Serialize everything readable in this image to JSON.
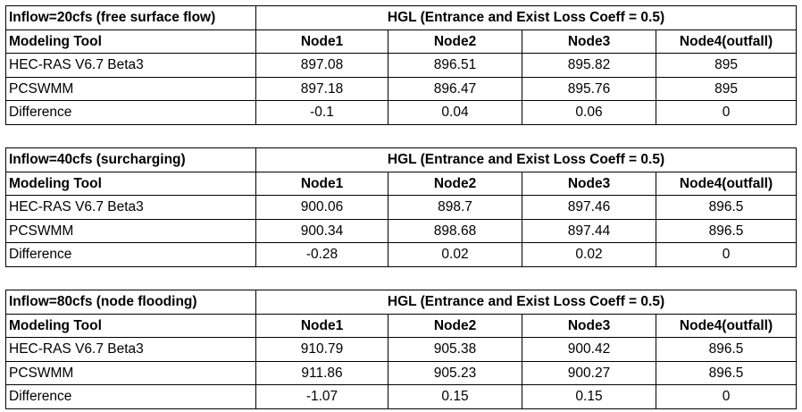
{
  "hgl_header": "HGL (Entrance and Exist Loss Coeff = 0.5)",
  "columns": [
    "Modeling Tool",
    "Node1",
    "Node2",
    "Node3",
    "Node4(outfall)"
  ],
  "tables": [
    {
      "title": "Inflow=20cfs (free surface flow)",
      "rows": [
        {
          "label": "HEC-RAS V6.7 Beta3",
          "values": [
            "897.08",
            "896.51",
            "895.82",
            "895"
          ]
        },
        {
          "label": "PCSWMM",
          "values": [
            "897.18",
            "896.47",
            "895.76",
            "895"
          ]
        },
        {
          "label": "Difference",
          "values": [
            "-0.1",
            "0.04",
            "0.06",
            "0"
          ]
        }
      ]
    },
    {
      "title": "Inflow=40cfs (surcharging)",
      "rows": [
        {
          "label": "HEC-RAS V6.7 Beta3",
          "values": [
            "900.06",
            "898.7",
            "897.46",
            "896.5"
          ]
        },
        {
          "label": "PCSWMM",
          "values": [
            "900.34",
            "898.68",
            "897.44",
            "896.5"
          ]
        },
        {
          "label": "Difference",
          "values": [
            "-0.28",
            "0.02",
            "0.02",
            "0"
          ]
        }
      ]
    },
    {
      "title": "Inflow=80cfs (node flooding)",
      "rows": [
        {
          "label": "HEC-RAS V6.7 Beta3",
          "values": [
            "910.79",
            "905.38",
            "900.42",
            "896.5"
          ]
        },
        {
          "label": "PCSWMM",
          "values": [
            "911.86",
            "905.23",
            "900.27",
            "896.5"
          ]
        },
        {
          "label": "Difference",
          "values": [
            "-1.07",
            "0.15",
            "0.15",
            "0"
          ]
        }
      ]
    }
  ]
}
